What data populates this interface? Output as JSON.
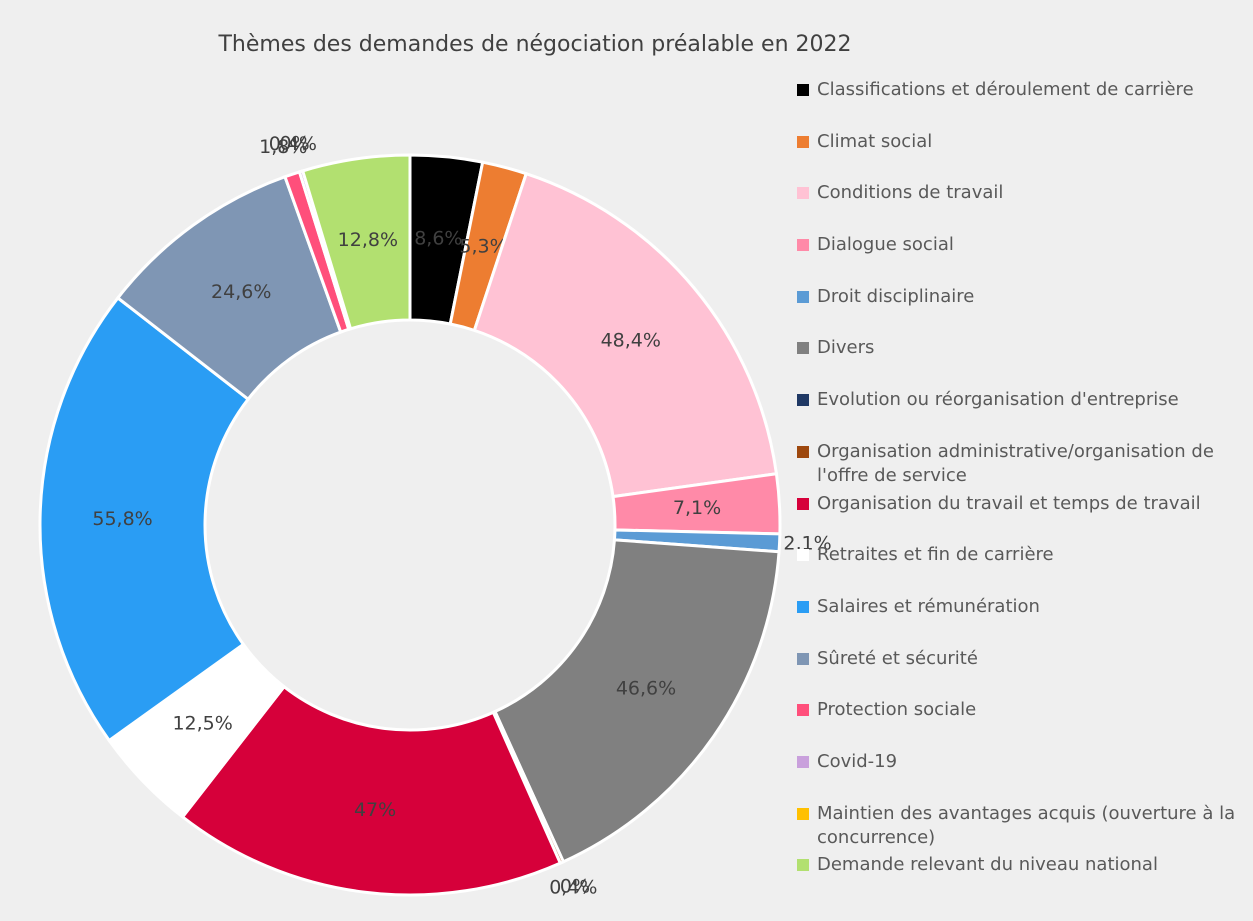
{
  "chart_data": {
    "type": "donut",
    "title": "Thèmes des demandes de négociation préalable en 2022",
    "categories": [
      "Classifications et déroulement de carrière",
      "Climat social",
      "Conditions de travail",
      "Dialogue social",
      "Droit disciplinaire",
      "Divers",
      "Evolution ou réorganisation d'entreprise",
      "Organisation administrative/organisation de l'offre de service",
      "Organisation du travail et temps de travail",
      "Retraites et fin de carrière",
      "Salaires et rémunération",
      "Sûreté et sécurité",
      "Protection sociale",
      "Covid-19",
      "Maintien des avantages acquis (ouverture à la concurrence)",
      "Demande relevant du niveau national"
    ],
    "values": [
      8.6,
      5.3,
      48.4,
      7.1,
      2.1,
      46.6,
      0,
      0.4,
      47,
      12.5,
      55.8,
      24.6,
      1.8,
      0.4,
      0,
      12.8
    ],
    "value_labels": [
      "8,6%",
      "5,3%",
      "48,4%",
      "7,1%",
      "2,1%",
      "46,6%",
      "0%",
      "0,4%",
      "47%",
      "12,5%",
      "55,8%",
      "24,6%",
      "1,8%",
      "0,4%",
      "0%",
      "12,8%"
    ],
    "colors": [
      "#000000",
      "#ed7d31",
      "#ffc2d4",
      "#ff8aa8",
      "#5b9bd5",
      "#808080",
      "#1f3864",
      "#9e480e",
      "#d6003a",
      "#ffffff",
      "#2a9df4",
      "#7f96b4",
      "#ff4f7b",
      "#c9a0dc",
      "#ffc000",
      "#b2e070"
    ],
    "legend": "right"
  }
}
